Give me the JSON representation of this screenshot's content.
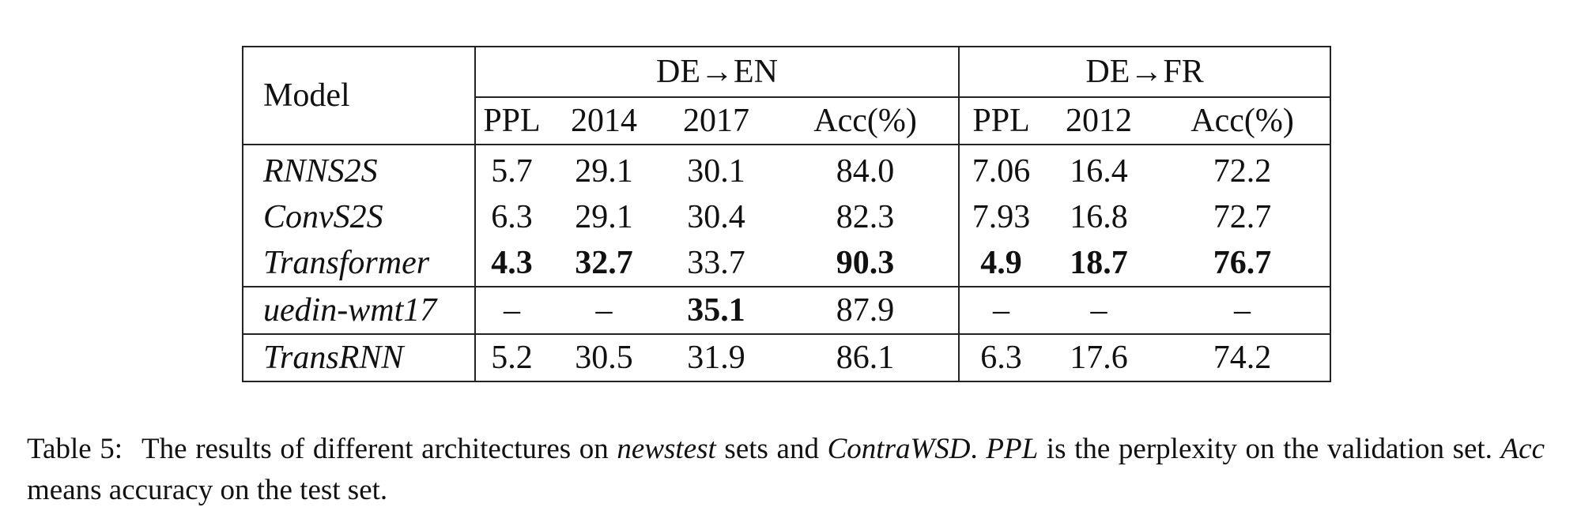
{
  "table": {
    "model_header": "Model",
    "groups": [
      {
        "name": "DE→EN",
        "columns": [
          "PPL",
          "2014",
          "2017",
          "Acc(%)"
        ]
      },
      {
        "name": "DE→FR",
        "columns": [
          "PPL",
          "2012",
          "Acc(%)"
        ]
      }
    ],
    "rows": [
      {
        "model": "RNNS2S",
        "cells": [
          "5.7",
          "29.1",
          "30.1",
          "84.0",
          "7.06",
          "16.4",
          "72.2"
        ],
        "bold": []
      },
      {
        "model": "ConvS2S",
        "cells": [
          "6.3",
          "29.1",
          "30.4",
          "82.3",
          "7.93",
          "16.8",
          "72.7"
        ],
        "bold": []
      },
      {
        "model": "Transformer",
        "cells": [
          "4.3",
          "32.7",
          "33.7",
          "90.3",
          "4.9",
          "18.7",
          "76.7"
        ],
        "bold": [
          0,
          1,
          3,
          4,
          5,
          6
        ]
      },
      {
        "model": "uedin-wmt17",
        "cells": [
          "–",
          "–",
          "35.1",
          "87.9",
          "–",
          "–",
          "–"
        ],
        "bold": [
          2
        ]
      },
      {
        "model": "TransRNN",
        "cells": [
          "5.2",
          "30.5",
          "31.9",
          "86.1",
          "6.3",
          "17.6",
          "74.2"
        ],
        "bold": []
      }
    ]
  },
  "caption": {
    "label": "Table 5:",
    "parts": [
      {
        "text": "The results of different architectures on ",
        "italic": false
      },
      {
        "text": "newstest",
        "italic": true
      },
      {
        "text": " sets and ",
        "italic": false
      },
      {
        "text": "ContraWSD",
        "italic": true
      },
      {
        "text": ". ",
        "italic": false
      },
      {
        "text": "PPL",
        "italic": true
      },
      {
        "text": " is the perplexity on the validation set. ",
        "italic": false
      },
      {
        "text": "Acc",
        "italic": true
      },
      {
        "text": " means accuracy on the test set.",
        "italic": false
      }
    ]
  }
}
